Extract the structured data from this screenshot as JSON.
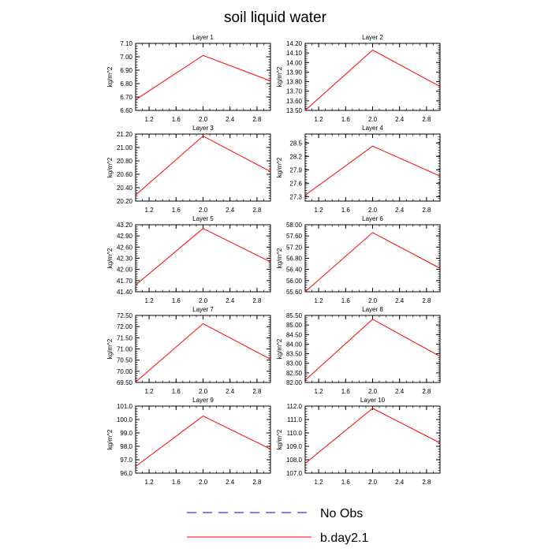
{
  "title": "soil liquid water",
  "legend": [
    {
      "label": "No Obs",
      "color": "#0000ff",
      "dash": "dashed"
    },
    {
      "label": "b.day2.1",
      "color": "#ff0000",
      "dash": "solid"
    }
  ],
  "chart_data": [
    {
      "type": "line",
      "title": "Layer 1",
      "ylabel": "kg/m^2",
      "xlim": [
        1.0,
        3.0
      ],
      "ylim": [
        6.6,
        7.1
      ],
      "xticks": [
        "1.2",
        "1.6",
        "2.0",
        "2.4",
        "2.8"
      ],
      "yticks": [
        "6.60",
        "6.70",
        "6.80",
        "6.90",
        "7.00",
        "7.10"
      ],
      "series": [
        {
          "name": "b.day2.1",
          "x": [
            1,
            2,
            3
          ],
          "y": [
            6.68,
            7.01,
            6.82
          ]
        }
      ]
    },
    {
      "type": "line",
      "title": "Layer 2",
      "ylabel": "kg/m^2",
      "xlim": [
        1.0,
        3.0
      ],
      "ylim": [
        13.5,
        14.2
      ],
      "xticks": [
        "1.2",
        "1.6",
        "2.0",
        "2.4",
        "2.8"
      ],
      "yticks": [
        "13.50",
        "13.60",
        "13.70",
        "13.80",
        "13.90",
        "14.00",
        "14.10",
        "14.20"
      ],
      "series": [
        {
          "name": "b.day2.1",
          "x": [
            1,
            2,
            3
          ],
          "y": [
            13.5,
            14.13,
            13.75
          ]
        }
      ]
    },
    {
      "type": "line",
      "title": "Layer 3",
      "ylabel": "kg/m^2",
      "xlim": [
        1.0,
        3.0
      ],
      "ylim": [
        20.2,
        21.2
      ],
      "xticks": [
        "1.2",
        "1.6",
        "2.0",
        "2.4",
        "2.8"
      ],
      "yticks": [
        "20.20",
        "20.40",
        "20.60",
        "20.80",
        "21.00",
        "21.20"
      ],
      "series": [
        {
          "name": "b.day2.1",
          "x": [
            1,
            2,
            3
          ],
          "y": [
            20.29,
            21.17,
            20.64
          ]
        }
      ]
    },
    {
      "type": "line",
      "title": "Layer 4",
      "ylabel": "kg/m^2",
      "xlim": [
        1.0,
        3.0
      ],
      "ylim": [
        27.2,
        28.7
      ],
      "xticks": [
        "1.2",
        "1.6",
        "2.0",
        "2.4",
        "2.8"
      ],
      "yticks": [
        "27.3",
        "27.6",
        "27.9",
        "28.2",
        "28.5"
      ],
      "series": [
        {
          "name": "b.day2.1",
          "x": [
            1,
            2,
            3
          ],
          "y": [
            27.33,
            28.43,
            27.76
          ]
        }
      ]
    },
    {
      "type": "line",
      "title": "Layer 5",
      "ylabel": "kg/m^2",
      "xlim": [
        1.0,
        3.0
      ],
      "ylim": [
        41.4,
        43.2
      ],
      "xticks": [
        "1.2",
        "1.6",
        "2.0",
        "2.4",
        "2.8"
      ],
      "yticks": [
        "41.40",
        "41.70",
        "42.00",
        "42.30",
        "42.60",
        "42.90",
        "43.20"
      ],
      "series": [
        {
          "name": "b.day2.1",
          "x": [
            1,
            2,
            3
          ],
          "y": [
            41.58,
            43.1,
            42.2
          ]
        }
      ]
    },
    {
      "type": "line",
      "title": "Layer 6",
      "ylabel": "kg/m^2",
      "xlim": [
        1.0,
        3.0
      ],
      "ylim": [
        55.6,
        58.0
      ],
      "xticks": [
        "1.2",
        "1.6",
        "2.0",
        "2.4",
        "2.8"
      ],
      "yticks": [
        "55.60",
        "56.00",
        "56.40",
        "56.80",
        "57.20",
        "57.60",
        "58.00"
      ],
      "series": [
        {
          "name": "b.day2.1",
          "x": [
            1,
            2,
            3
          ],
          "y": [
            55.6,
            57.72,
            56.44
          ]
        }
      ]
    },
    {
      "type": "line",
      "title": "Layer 7",
      "ylabel": "kg/m^2",
      "xlim": [
        1.0,
        3.0
      ],
      "ylim": [
        69.5,
        72.5
      ],
      "xticks": [
        "1.2",
        "1.6",
        "2.0",
        "2.4",
        "2.8"
      ],
      "yticks": [
        "69.50",
        "70.00",
        "70.50",
        "71.00",
        "71.50",
        "72.00",
        "72.50"
      ],
      "series": [
        {
          "name": "b.day2.1",
          "x": [
            1,
            2,
            3
          ],
          "y": [
            69.52,
            72.13,
            70.54
          ]
        }
      ]
    },
    {
      "type": "line",
      "title": "Layer 8",
      "ylabel": "kg/m^2",
      "xlim": [
        1.0,
        3.0
      ],
      "ylim": [
        82.0,
        85.5
      ],
      "xticks": [
        "1.2",
        "1.6",
        "2.0",
        "2.4",
        "2.8"
      ],
      "yticks": [
        "82.00",
        "82.50",
        "83.00",
        "83.50",
        "84.00",
        "84.50",
        "85.00",
        "85.50"
      ],
      "series": [
        {
          "name": "b.day2.1",
          "x": [
            1,
            2,
            3
          ],
          "y": [
            82.12,
            85.3,
            83.36
          ]
        }
      ]
    },
    {
      "type": "line",
      "title": "Layer 9",
      "ylabel": "kg/m^2",
      "xlim": [
        1.0,
        3.0
      ],
      "ylim": [
        96.0,
        101.0
      ],
      "xticks": [
        "1.2",
        "1.6",
        "2.0",
        "2.4",
        "2.8"
      ],
      "yticks": [
        "96.0",
        "97.0",
        "98.0",
        "99.0",
        "100.0",
        "101.0"
      ],
      "series": [
        {
          "name": "b.day2.1",
          "x": [
            1,
            2,
            3
          ],
          "y": [
            96.5,
            100.26,
            97.8
          ]
        }
      ]
    },
    {
      "type": "line",
      "title": "Layer 10",
      "ylabel": "kg/m^2",
      "xlim": [
        1.0,
        3.0
      ],
      "ylim": [
        107.0,
        112.0
      ],
      "xticks": [
        "1.2",
        "1.6",
        "2.0",
        "2.4",
        "2.8"
      ],
      "yticks": [
        "107.0",
        "108.0",
        "109.0",
        "110.0",
        "111.0",
        "112.0"
      ],
      "series": [
        {
          "name": "b.day2.1",
          "x": [
            1,
            2,
            3
          ],
          "y": [
            107.73,
            111.83,
            109.25
          ]
        }
      ]
    }
  ]
}
